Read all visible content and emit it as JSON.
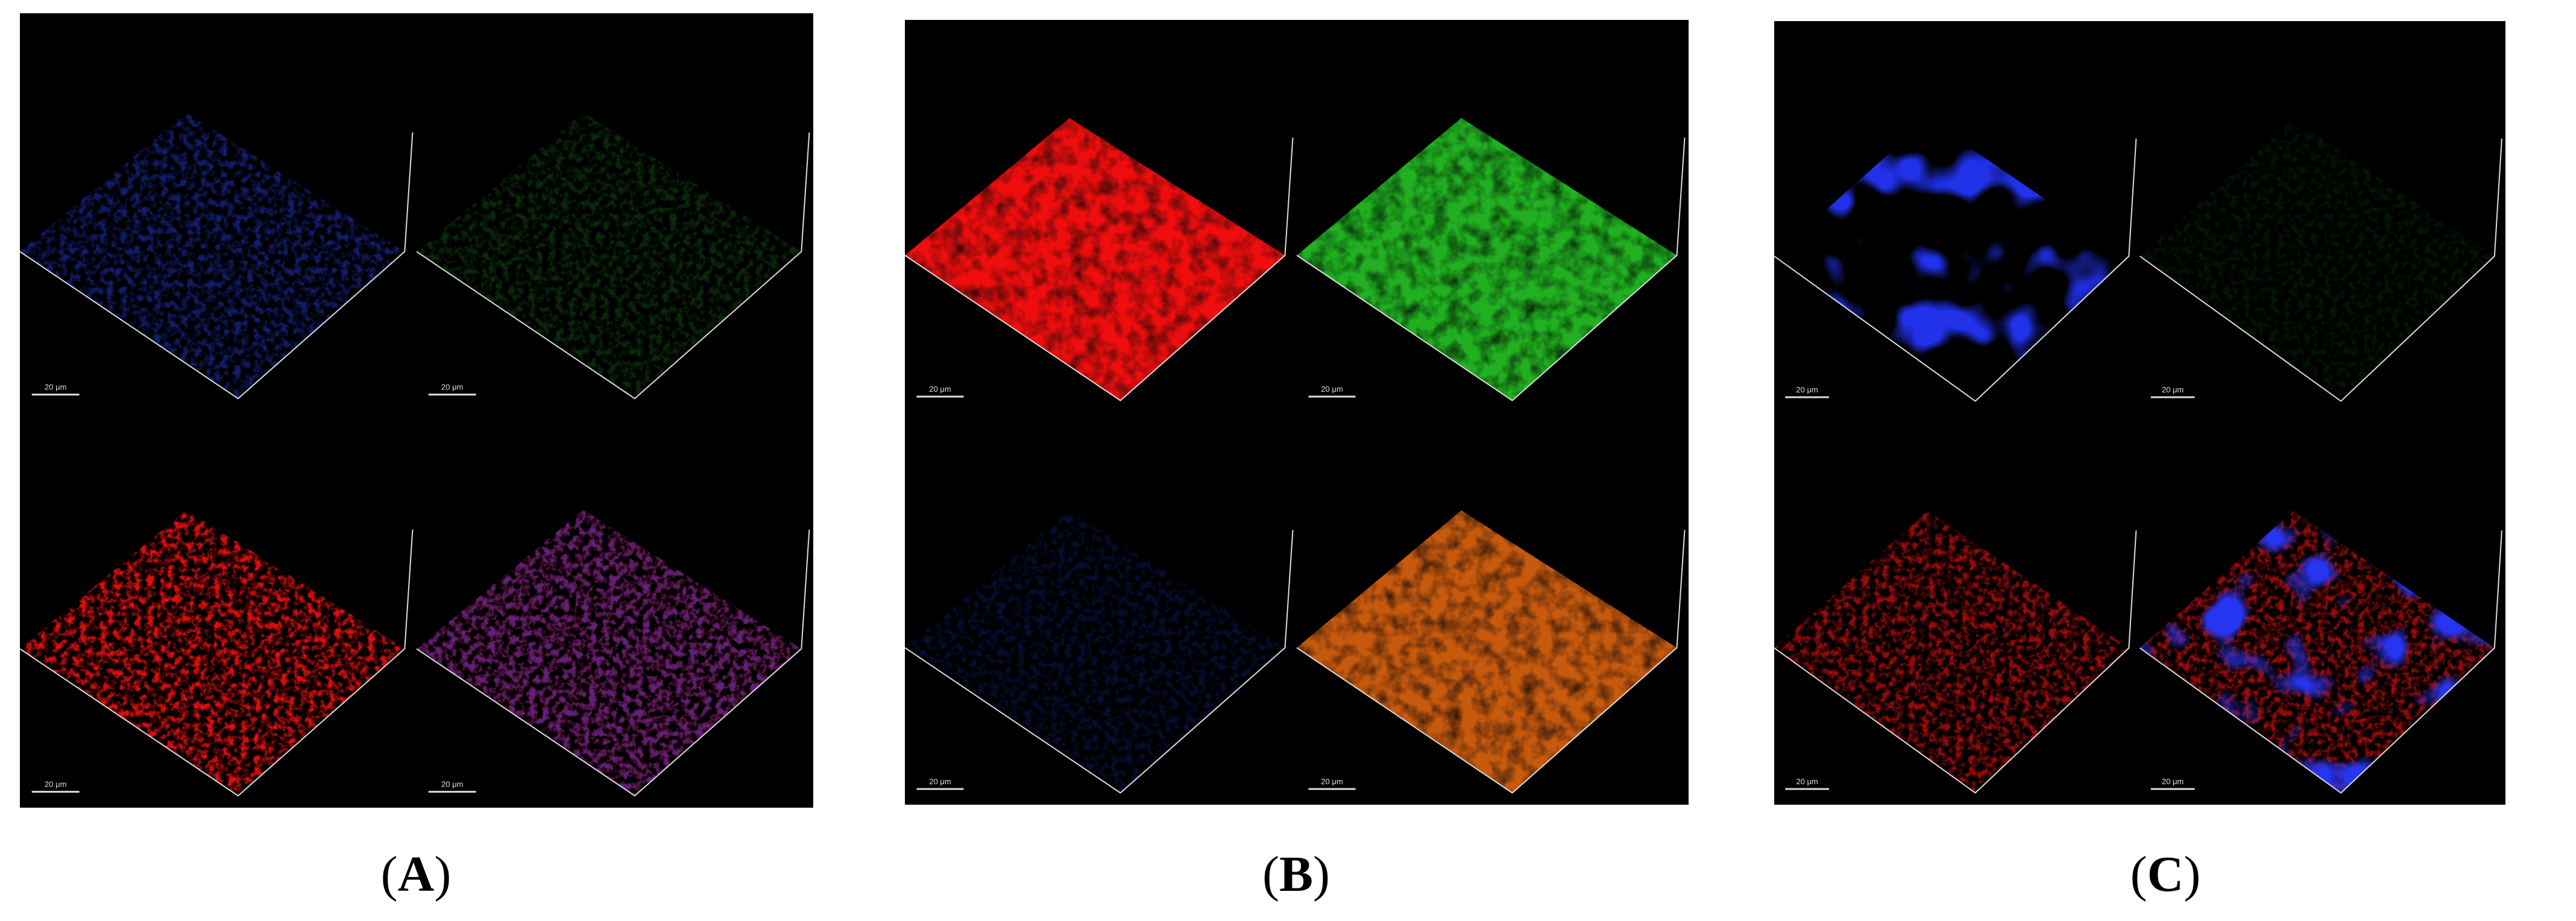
{
  "panels": [
    {
      "label": [
        "(",
        "A",
        ")"
      ],
      "scale_bars": [
        "20 μm",
        "20 μm",
        "20 μm",
        "20 μm"
      ]
    },
    {
      "label": [
        "(",
        "B",
        ")"
      ],
      "scale_bars": [
        "20 μm",
        "20 μm",
        "20 μm",
        "20 μm"
      ]
    },
    {
      "label": [
        "(",
        "C",
        ")"
      ],
      "scale_bars": [
        "20 μm",
        "20 μm",
        "20 μm",
        "20 μm"
      ]
    }
  ]
}
